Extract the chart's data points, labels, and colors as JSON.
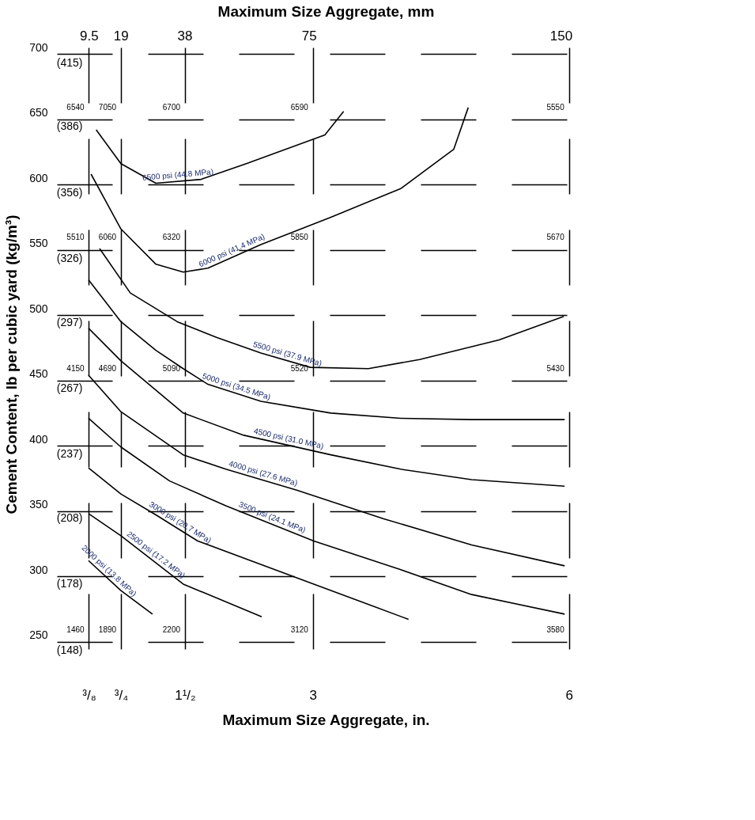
{
  "chart_data": {
    "type": "line",
    "xlabel": "Maximum Size Aggregate, in.",
    "x2label": "Maximum Size Aggregate, mm",
    "ylabel": "Cement Content, lb per cubic yard (kg/m³)",
    "xlim": [
      0,
      6.3
    ],
    "xticks": [
      {
        "value": 0.375,
        "label": "³/₈"
      },
      {
        "value": 0.75,
        "label": "³/₄"
      },
      {
        "value": 1.5,
        "label": "1¹/₂"
      },
      3,
      6
    ],
    "x2lim": [
      0,
      160
    ],
    "x2ticks": [
      9.5,
      19,
      38,
      75,
      150
    ],
    "ylim": [
      220,
      705
    ],
    "yticks": [
      250,
      300,
      350,
      400,
      450,
      500,
      550,
      600,
      650,
      700
    ],
    "y2lim": [
      130.5,
      418.3
    ],
    "y2ticks": [
      {
        "value": 148,
        "label": "(148)"
      },
      {
        "value": 178,
        "label": "(178)"
      },
      {
        "value": 208,
        "label": "(208)"
      },
      {
        "value": 237,
        "label": "(237)"
      },
      {
        "value": 267,
        "label": "(267)"
      },
      {
        "value": 297,
        "label": "(297)"
      },
      {
        "value": 326,
        "label": "(326)"
      },
      {
        "value": 356,
        "label": "(356)"
      },
      {
        "value": 386,
        "label": "(386)"
      },
      {
        "value": 415,
        "label": "(415)"
      }
    ],
    "grid": true,
    "legend": false,
    "marker": "none",
    "line_style": "solid",
    "series": [
      {
        "name": "6500 psi (44.8 MPa)",
        "color": "#000000",
        "x": [
          0.46,
          0.75,
          1.16,
          1.69,
          2.22,
          3.14,
          3.36
        ],
        "values": [
          642,
          616,
          601,
          604,
          616,
          638,
          656
        ]
      },
      {
        "name": "6000 psi (41.4 MPa)",
        "color": "#000000",
        "x": [
          0.4,
          0.75,
          1.16,
          1.48,
          1.77,
          2.39,
          3.21,
          4.03,
          4.65,
          4.82
        ],
        "values": [
          608,
          566,
          539,
          533,
          536,
          554,
          575,
          597,
          627,
          659
        ]
      },
      {
        "name": "5500 psi (37.9 MPa)",
        "color": "#000000",
        "x": [
          0.5,
          0.86,
          1.41,
          1.87,
          2.39,
          2.97,
          3.65,
          4.25,
          5.18,
          5.94
        ],
        "values": [
          551,
          517,
          495,
          483,
          471,
          460,
          459,
          466,
          481,
          499
        ]
      },
      {
        "name": "5000 psi (34.5 MPa)",
        "color": "#000000",
        "x": [
          0.37,
          0.75,
          1.16,
          1.48,
          1.77,
          2.39,
          3.21,
          4.03,
          4.86,
          5.95
        ],
        "values": [
          527,
          495,
          473,
          459,
          447,
          434,
          425,
          421,
          420,
          420
        ]
      },
      {
        "name": "4500 psi (31.0 MPa)",
        "color": "#000000",
        "x": [
          0.37,
          0.75,
          1.48,
          2.19,
          3.21,
          4.03,
          4.86,
          5.95
        ],
        "values": [
          490,
          465,
          425,
          408,
          393,
          382,
          374,
          369
        ]
      },
      {
        "name": "4000 psi (27.6 MPa)",
        "color": "#000000",
        "x": [
          0.37,
          0.75,
          1.48,
          1.98,
          2.81,
          3.83,
          4.86,
          5.95
        ],
        "values": [
          454,
          426,
          393,
          382,
          366,
          344,
          324,
          308
        ]
      },
      {
        "name": "3500 psi (24.1 MPa)",
        "color": "#000000",
        "x": [
          0.37,
          0.75,
          1.32,
          1.98,
          3.01,
          4.03,
          4.86,
          5.95
        ],
        "values": [
          421,
          399,
          373,
          354,
          327,
          305,
          286,
          271
        ]
      },
      {
        "name": "3000 psi (20.7 MPa)",
        "color": "#000000",
        "x": [
          0.37,
          0.75,
          1.16,
          1.65,
          3.01,
          4.12
        ],
        "values": [
          383,
          363,
          347,
          327,
          294,
          267
        ]
      },
      {
        "name": "2500 psi (17.2 MPa)",
        "color": "#000000",
        "x": [
          0.37,
          0.75,
          1.48,
          2.4
        ],
        "values": [
          348,
          331,
          294,
          269
        ]
      },
      {
        "name": "2000 psi (13.8 MPa)",
        "color": "#000000",
        "x": [
          0.37,
          0.75,
          1.12
        ],
        "values": [
          312,
          289,
          271
        ]
      }
    ],
    "annotations": [
      "6540",
      "7050",
      "6700",
      "6590",
      "5550",
      "5510",
      "6060",
      "6320",
      "5850",
      "5670",
      "4150",
      "4690",
      "5090",
      "5520",
      "5430",
      "1460",
      "1890",
      "2200",
      "3120",
      "3580"
    ]
  }
}
